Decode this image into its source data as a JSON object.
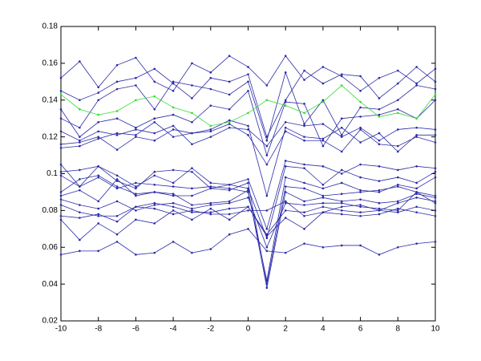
{
  "chart_data": {
    "type": "line",
    "x": [
      -10,
      -9,
      -8,
      -7,
      -6,
      -5,
      -4,
      -3,
      -2,
      -1,
      0,
      1,
      2,
      3,
      4,
      5,
      6,
      7,
      8,
      9,
      10
    ],
    "xlim": [
      -10,
      10
    ],
    "xticks": [
      -10,
      -8,
      -6,
      -4,
      -2,
      0,
      2,
      4,
      6,
      8,
      10
    ],
    "ylim": [
      0.02,
      0.18
    ],
    "yticks": [
      0.02,
      0.04,
      0.06,
      0.08,
      0.1,
      0.12,
      0.14,
      0.16,
      0.18
    ],
    "grid": false,
    "markers": true,
    "series": [
      {
        "color": "#2a2aa8",
        "values": [
          0.152,
          0.161,
          0.147,
          0.159,
          0.163,
          0.15,
          0.145,
          0.16,
          0.155,
          0.164,
          0.158,
          0.148,
          0.164,
          0.151,
          0.158,
          0.153,
          0.145,
          0.152,
          0.156,
          0.149,
          0.157
        ]
      },
      {
        "color": "#2a2aa8",
        "values": [
          0.145,
          0.14,
          0.144,
          0.15,
          0.152,
          0.157,
          0.149,
          0.141,
          0.152,
          0.15,
          0.154,
          0.12,
          0.14,
          0.156,
          0.149,
          0.154,
          0.153,
          0.141,
          0.149,
          0.158,
          0.15
        ]
      },
      {
        "color": "#2a2aa8",
        "values": [
          0.13,
          0.125,
          0.14,
          0.146,
          0.148,
          0.135,
          0.15,
          0.148,
          0.146,
          0.143,
          0.15,
          0.118,
          0.155,
          0.127,
          0.14,
          0.121,
          0.136,
          0.135,
          0.14,
          0.148,
          0.146
        ]
      },
      {
        "color": "#2a2aa8",
        "values": [
          0.135,
          0.12,
          0.128,
          0.13,
          0.125,
          0.13,
          0.132,
          0.128,
          0.137,
          0.135,
          0.145,
          0.11,
          0.139,
          0.138,
          0.115,
          0.13,
          0.131,
          0.132,
          0.135,
          0.13,
          0.14
        ]
      },
      {
        "color": "#2a2aa8",
        "values": [
          0.123,
          0.118,
          0.123,
          0.121,
          0.124,
          0.122,
          0.126,
          0.116,
          0.12,
          0.125,
          0.124,
          0.115,
          0.128,
          0.126,
          0.127,
          0.12,
          0.125,
          0.118,
          0.124,
          0.125,
          0.124
        ]
      },
      {
        "color": "#2a2aa8",
        "values": [
          0.116,
          0.117,
          0.12,
          0.113,
          0.12,
          0.118,
          0.124,
          0.122,
          0.123,
          0.127,
          0.121,
          0.105,
          0.123,
          0.118,
          0.118,
          0.112,
          0.124,
          0.116,
          0.115,
          0.12,
          0.117
        ]
      },
      {
        "color": "#2a2aa8",
        "values": [
          0.114,
          0.115,
          0.119,
          0.122,
          0.121,
          0.128,
          0.12,
          0.122,
          0.124,
          0.129,
          0.126,
          0.088,
          0.125,
          0.12,
          0.119,
          0.125,
          0.117,
          0.122,
          0.112,
          0.121,
          0.121
        ]
      },
      {
        "color": "#2a2aa8",
        "values": [
          0.105,
          0.093,
          0.104,
          0.099,
          0.093,
          0.099,
          0.095,
          0.103,
          0.095,
          0.094,
          0.097,
          0.07,
          0.107,
          0.105,
          0.104,
          0.1,
          0.105,
          0.104,
          0.102,
          0.104,
          0.103
        ]
      },
      {
        "color": "#2a2aa8",
        "values": [
          0.101,
          0.102,
          0.104,
          0.096,
          0.092,
          0.101,
          0.102,
          0.101,
          0.092,
          0.094,
          0.092,
          0.065,
          0.104,
          0.103,
          0.094,
          0.102,
          0.098,
          0.096,
          0.098,
          0.095,
          0.101
        ]
      },
      {
        "color": "#2a2aa8",
        "values": [
          0.099,
          0.093,
          0.098,
          0.092,
          0.095,
          0.094,
          0.093,
          0.092,
          0.093,
          0.092,
          0.09,
          0.042,
          0.098,
          0.095,
          0.092,
          0.095,
          0.091,
          0.09,
          0.094,
          0.092,
          0.098
        ]
      },
      {
        "color": "#2a2aa8",
        "values": [
          0.09,
          0.097,
          0.099,
          0.093,
          0.089,
          0.09,
          0.088,
          0.088,
          0.092,
          0.091,
          0.095,
          0.04,
          0.093,
          0.092,
          0.088,
          0.089,
          0.09,
          0.091,
          0.093,
          0.09,
          0.088
        ]
      },
      {
        "color": "#2a2aa8",
        "values": [
          0.088,
          0.091,
          0.085,
          0.097,
          0.088,
          0.09,
          0.089,
          0.083,
          0.084,
          0.085,
          0.091,
          0.038,
          0.09,
          0.085,
          0.087,
          0.085,
          0.086,
          0.084,
          0.085,
          0.089,
          0.087
        ]
      },
      {
        "color": "#2a2aa8",
        "values": [
          0.086,
          0.083,
          0.081,
          0.085,
          0.08,
          0.083,
          0.084,
          0.081,
          0.083,
          0.084,
          0.087,
          0.06,
          0.084,
          0.083,
          0.084,
          0.084,
          0.082,
          0.081,
          0.08,
          0.09,
          0.084
        ]
      },
      {
        "color": "#2a2aa8",
        "values": [
          0.083,
          0.079,
          0.077,
          0.077,
          0.082,
          0.084,
          0.082,
          0.079,
          0.079,
          0.081,
          0.082,
          0.067,
          0.08,
          0.079,
          0.082,
          0.08,
          0.079,
          0.08,
          0.079,
          0.082,
          0.08
        ]
      },
      {
        "color": "#2a2aa8",
        "values": [
          0.077,
          0.076,
          0.078,
          0.074,
          0.082,
          0.081,
          0.078,
          0.08,
          0.078,
          0.078,
          0.08,
          0.08,
          0.085,
          0.077,
          0.079,
          0.078,
          0.077,
          0.078,
          0.081,
          0.079,
          0.077
        ]
      },
      {
        "color": "#2a2aa8",
        "values": [
          0.075,
          0.064,
          0.073,
          0.067,
          0.075,
          0.073,
          0.08,
          0.075,
          0.081,
          0.075,
          0.082,
          0.066,
          0.076,
          0.07,
          0.079,
          0.082,
          0.083,
          0.08,
          0.084,
          0.087,
          0.085
        ]
      },
      {
        "color": "#2a2aa8",
        "values": [
          0.056,
          0.058,
          0.058,
          0.063,
          0.056,
          0.057,
          0.063,
          0.057,
          0.059,
          0.067,
          0.07,
          0.058,
          0.057,
          0.062,
          0.06,
          0.061,
          0.061,
          0.056,
          0.06,
          0.062,
          0.063
        ]
      },
      {
        "color": "#33dd33",
        "values": [
          0.143,
          0.135,
          0.132,
          0.134,
          0.14,
          0.142,
          0.136,
          0.133,
          0.126,
          0.128,
          0.133,
          0.14,
          0.137,
          0.133,
          0.139,
          0.148,
          0.139,
          0.131,
          0.133,
          0.13,
          0.143
        ]
      }
    ]
  }
}
